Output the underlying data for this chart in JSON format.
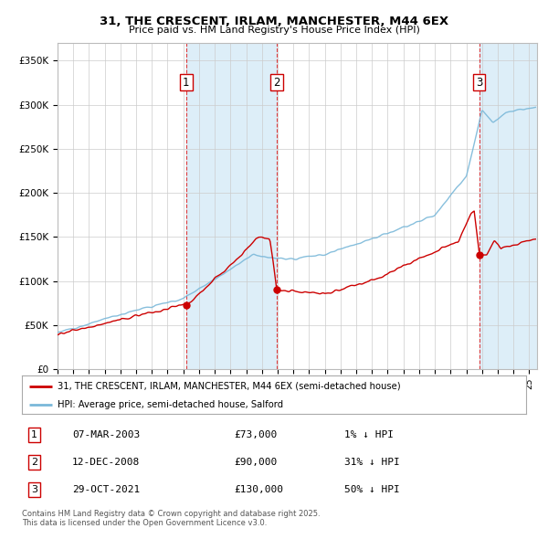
{
  "title1": "31, THE CRESCENT, IRLAM, MANCHESTER, M44 6EX",
  "title2": "Price paid vs. HM Land Registry's House Price Index (HPI)",
  "legend_line1": "31, THE CRESCENT, IRLAM, MANCHESTER, M44 6EX (semi-detached house)",
  "legend_line2": "HPI: Average price, semi-detached house, Salford",
  "transactions": [
    {
      "id": 1,
      "date": "07-MAR-2003",
      "year": 2003.18,
      "price": 73000,
      "hpi_diff": "1% ↓ HPI"
    },
    {
      "id": 2,
      "date": "12-DEC-2008",
      "year": 2008.95,
      "price": 90000,
      "hpi_diff": "31% ↓ HPI"
    },
    {
      "id": 3,
      "date": "29-OCT-2021",
      "year": 2021.83,
      "price": 130000,
      "hpi_diff": "50% ↓ HPI"
    }
  ],
  "footnote1": "Contains HM Land Registry data © Crown copyright and database right 2025.",
  "footnote2": "This data is licensed under the Open Government Licence v3.0.",
  "ylim": [
    0,
    370000
  ],
  "xlim_start": 1995.0,
  "xlim_end": 2025.5,
  "hpi_color": "#7ab8d9",
  "price_color": "#cc0000",
  "shade_color": "#ddeef8",
  "grid_color": "#cccccc",
  "background_color": "#ffffff",
  "num_points": 500
}
